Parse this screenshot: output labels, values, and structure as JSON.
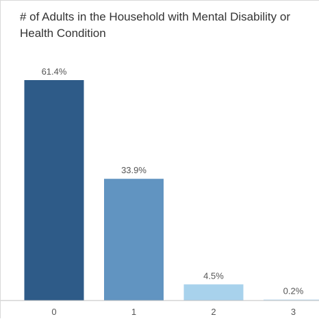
{
  "chart_data": {
    "type": "bar",
    "title": "# of Adults in the Household with Mental Disability or Health Condition",
    "xlabel": "",
    "ylabel": "",
    "categories": [
      "0",
      "1",
      "2",
      "3"
    ],
    "values": [
      61.4,
      33.9,
      4.5,
      0.2
    ],
    "labels": [
      "61.4%",
      "33.9%",
      "4.5%",
      "0.2%"
    ],
    "colors": [
      "#2e5b88",
      "#6194c1",
      "#a8d2ec",
      "#c4e2f4"
    ],
    "ylim": [
      0,
      61.4
    ],
    "grid": false,
    "legend": "none"
  }
}
